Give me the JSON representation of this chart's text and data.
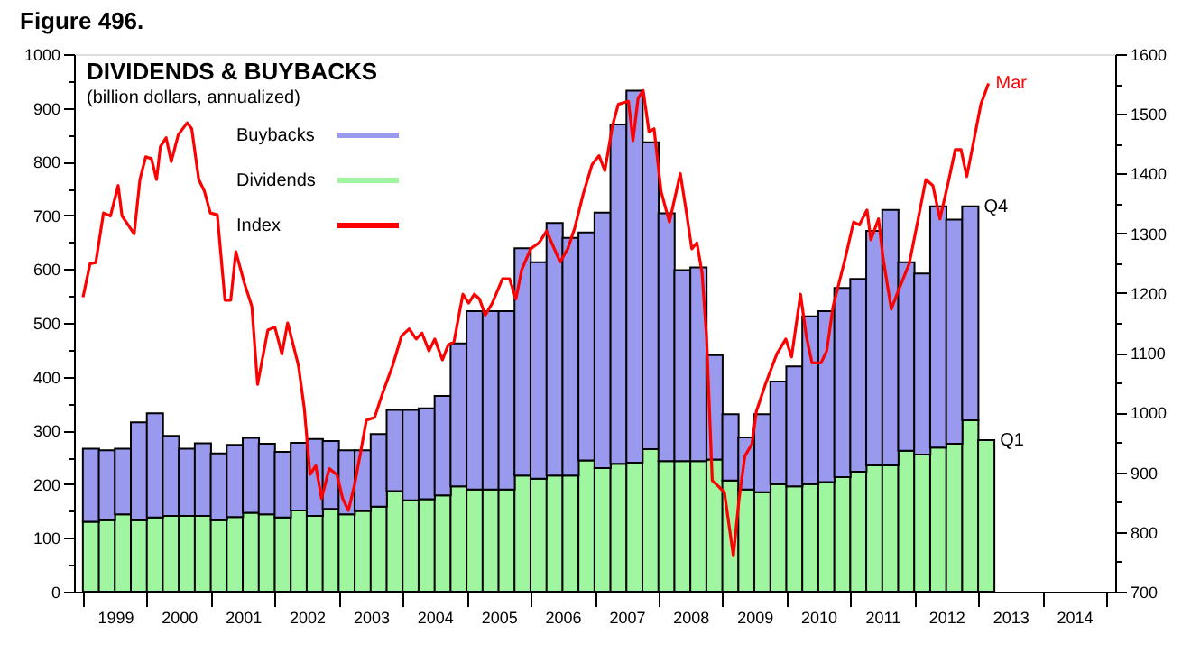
{
  "chart_data": {
    "type": "bar",
    "stacked": true,
    "title": "DIVIDENDS & BUYBACKS",
    "subtitle": "(billion dollars, annualized)",
    "annotations": [
      "Figure 496.",
      "Mar",
      {
        "text": "Q4",
        "x": 2012.875,
        "y": 717
      },
      {
        "text": "Q1",
        "x": 2013.125,
        "y": 282
      }
    ],
    "x": [
      1999.125,
      1999.375,
      1999.625,
      1999.875,
      2000.125,
      2000.375,
      2000.625,
      2000.875,
      2001.125,
      2001.375,
      2001.625,
      2001.875,
      2002.125,
      2002.375,
      2002.625,
      2002.875,
      2003.125,
      2003.375,
      2003.625,
      2003.875,
      2004.125,
      2004.375,
      2004.625,
      2004.875,
      2005.125,
      2005.375,
      2005.625,
      2005.875,
      2006.125,
      2006.375,
      2006.625,
      2006.875,
      2007.125,
      2007.375,
      2007.625,
      2007.875,
      2008.125,
      2008.375,
      2008.625,
      2008.875,
      2009.125,
      2009.375,
      2009.625,
      2009.875,
      2010.125,
      2010.375,
      2010.625,
      2010.875,
      2011.125,
      2011.375,
      2011.625,
      2011.875,
      2012.125,
      2012.375,
      2012.625,
      2012.875,
      2013.125
    ],
    "series": [
      {
        "name": "Dividends",
        "color": "#a0f5a0",
        "values": [
          130,
          133,
          144,
          133,
          138,
          141,
          141,
          141,
          133,
          139,
          147,
          144,
          138,
          151,
          141,
          154,
          144,
          150,
          158,
          187,
          170,
          172,
          179,
          196,
          190,
          190,
          190,
          216,
          210,
          216,
          216,
          244,
          230,
          238,
          240,
          265,
          243,
          243,
          243,
          246,
          207,
          190,
          185,
          200,
          196,
          200,
          204,
          213,
          223,
          235,
          235,
          262,
          255,
          268,
          275,
          319,
          282
        ]
      },
      {
        "name": "Buybacks",
        "color": "#9999ee",
        "values": [
          136,
          130,
          122,
          182,
          194,
          149,
          125,
          135,
          124,
          134,
          139,
          131,
          122,
          126,
          143,
          126,
          119,
          113,
          135,
          151,
          168,
          169,
          185,
          266,
          332,
          332,
          332,
          423,
          403,
          470,
          442,
          424,
          475,
          631,
          692,
          571,
          461,
          355,
          360,
          194,
          123,
          97,
          145,
          191,
          223,
          312,
          318,
          352,
          359,
          436,
          475,
          351,
          337,
          449,
          417,
          398,
          null
        ]
      },
      {
        "name": "Index",
        "type": "line",
        "axis": "y2",
        "color": "#ff0000",
        "x": [
          1999.0,
          1999.11,
          1999.2,
          1999.32,
          1999.43,
          1999.55,
          1999.61,
          1999.8,
          1999.89,
          1999.98,
          2000.07,
          2000.15,
          2000.21,
          2000.3,
          2000.38,
          2000.49,
          2000.63,
          2000.7,
          2000.81,
          2000.9,
          2000.99,
          2001.1,
          2001.22,
          2001.31,
          2001.39,
          2001.53,
          2001.64,
          2001.73,
          2001.89,
          2002.0,
          2002.11,
          2002.2,
          2002.37,
          2002.46,
          2002.55,
          2002.64,
          2002.73,
          2002.85,
          2002.97,
          2003.06,
          2003.15,
          2003.24,
          2003.33,
          2003.43,
          2003.56,
          2003.7,
          2003.84,
          2003.98,
          2004.1,
          2004.21,
          2004.3,
          2004.41,
          2004.5,
          2004.62,
          2004.71,
          2004.8,
          2004.94,
          2005.03,
          2005.12,
          2005.2,
          2005.29,
          2005.4,
          2005.56,
          2005.67,
          2005.77,
          2005.86,
          2006.0,
          2006.13,
          2006.25,
          2006.35,
          2006.46,
          2006.58,
          2006.69,
          2006.82,
          2006.96,
          2007.07,
          2007.16,
          2007.28,
          2007.37,
          2007.53,
          2007.6,
          2007.68,
          2007.76,
          2007.85,
          2007.93,
          2008.04,
          2008.17,
          2008.34,
          2008.43,
          2008.52,
          2008.6,
          2008.68,
          2008.75,
          2008.84,
          2008.94,
          2009.03,
          2009.17,
          2009.26,
          2009.35,
          2009.46,
          2009.53,
          2009.67,
          2009.85,
          2009.99,
          2010.08,
          2010.22,
          2010.31,
          2010.4,
          2010.54,
          2010.63,
          2010.73,
          2010.91,
          2011.05,
          2011.14,
          2011.26,
          2011.32,
          2011.44,
          2011.51,
          2011.64,
          2011.75,
          2011.92,
          2012.06,
          2012.18,
          2012.29,
          2012.4,
          2012.52,
          2012.64,
          2012.73,
          2012.82,
          2012.93,
          2013.04,
          2013.16
        ],
        "values": [
          1193,
          1249,
          1251,
          1334,
          1329,
          1380,
          1329,
          1299,
          1390,
          1428,
          1425,
          1390,
          1445,
          1460,
          1420,
          1465,
          1485,
          1475,
          1390,
          1370,
          1334,
          1331,
          1188,
          1188,
          1269,
          1214,
          1178,
          1047,
          1138,
          1143,
          1098,
          1150,
          1078,
          1007,
          896,
          911,
          856,
          906,
          896,
          856,
          836,
          876,
          927,
          987,
          992,
          1037,
          1078,
          1128,
          1140,
          1123,
          1133,
          1103,
          1123,
          1088,
          1113,
          1118,
          1198,
          1183,
          1198,
          1190,
          1163,
          1183,
          1224,
          1224,
          1190,
          1239,
          1274,
          1284,
          1304,
          1279,
          1252,
          1274,
          1309,
          1365,
          1415,
          1430,
          1405,
          1480,
          1516,
          1521,
          1455,
          1526,
          1539,
          1470,
          1475,
          1370,
          1319,
          1400,
          1339,
          1274,
          1284,
          1234,
          1128,
          886,
          876,
          866,
          760,
          856,
          927,
          947,
          1002,
          1047,
          1098,
          1123,
          1093,
          1198,
          1128,
          1083,
          1083,
          1103,
          1178,
          1254,
          1319,
          1314,
          1339,
          1289,
          1324,
          1259,
          1173,
          1204,
          1249,
          1324,
          1390,
          1380,
          1324,
          1380,
          1440,
          1440,
          1395,
          1455,
          1516,
          1551
        ]
      }
    ],
    "xlim": [
      1999,
      2015
    ],
    "xticks": [
      {
        "value": 1999,
        "label": null
      },
      {
        "value": 1999.5,
        "label": "1999"
      },
      {
        "value": 2000,
        "label": null
      },
      {
        "value": 2000.5,
        "label": "2000"
      },
      {
        "value": 2001,
        "label": null
      },
      {
        "value": 2001.5,
        "label": "2001"
      },
      {
        "value": 2002,
        "label": null
      },
      {
        "value": 2002.5,
        "label": "2002"
      },
      {
        "value": 2003,
        "label": null
      },
      {
        "value": 2003.5,
        "label": "2003"
      },
      {
        "value": 2004,
        "label": null
      },
      {
        "value": 2004.5,
        "label": "2004"
      },
      {
        "value": 2005,
        "label": null
      },
      {
        "value": 2005.5,
        "label": "2005"
      },
      {
        "value": 2006,
        "label": null
      },
      {
        "value": 2006.5,
        "label": "2006"
      },
      {
        "value": 2007,
        "label": null
      },
      {
        "value": 2007.5,
        "label": "2007"
      },
      {
        "value": 2008,
        "label": null
      },
      {
        "value": 2008.5,
        "label": "2008"
      },
      {
        "value": 2009,
        "label": null
      },
      {
        "value": 2009.5,
        "label": "2009"
      },
      {
        "value": 2010,
        "label": null
      },
      {
        "value": 2010.5,
        "label": "2010"
      },
      {
        "value": 2011,
        "label": null
      },
      {
        "value": 2011.5,
        "label": "2011"
      },
      {
        "value": 2012,
        "label": null
      },
      {
        "value": 2012.5,
        "label": "2012"
      },
      {
        "value": 2013,
        "label": null
      },
      {
        "value": 2013.5,
        "label": "2013"
      },
      {
        "value": 2014,
        "label": null
      },
      {
        "value": 2014.5,
        "label": "2014"
      },
      {
        "value": 2015,
        "label": null
      }
    ],
    "ylim": [
      0,
      1000
    ],
    "yticks": [
      0,
      {
        "value": 50,
        "label": null
      },
      100,
      {
        "value": 150,
        "label": null
      },
      200,
      {
        "value": 250,
        "label": null
      },
      300,
      {
        "value": 350,
        "label": null
      },
      400,
      {
        "value": 450,
        "label": null
      },
      500,
      {
        "value": 550,
        "label": null
      },
      600,
      {
        "value": 650,
        "label": null
      },
      700,
      {
        "value": 750,
        "label": null
      },
      800,
      {
        "value": 850,
        "label": null
      },
      900,
      {
        "value": 950,
        "label": null
      },
      1000
    ],
    "y2lim": [
      700,
      1600
    ],
    "y2ticks": [
      700,
      {
        "value": 750,
        "label": null
      },
      800,
      {
        "value": 850,
        "label": null
      },
      900,
      {
        "value": 950,
        "label": null
      },
      1000,
      {
        "value": 1050,
        "label": null
      },
      1100,
      {
        "value": 1150,
        "label": null
      },
      1200,
      {
        "value": 1250,
        "label": null
      },
      1300,
      {
        "value": 1350,
        "label": null
      },
      1400,
      {
        "value": 1450,
        "label": null
      },
      1500,
      {
        "value": 1550,
        "label": null
      },
      1600
    ],
    "grid": false,
    "legend": "top left",
    "marker": "none",
    "line_style": "solid"
  }
}
